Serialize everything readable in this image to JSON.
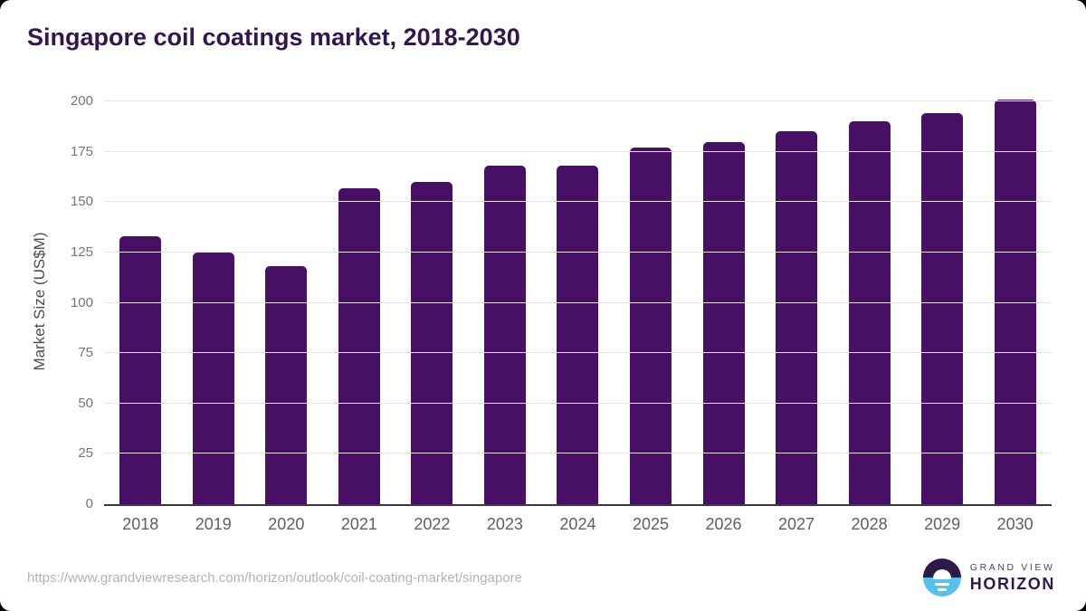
{
  "chart_data": {
    "type": "bar",
    "title": "Singapore coil coatings market, 2018-2030",
    "categories": [
      "2018",
      "2019",
      "2020",
      "2021",
      "2022",
      "2023",
      "2024",
      "2025",
      "2026",
      "2027",
      "2028",
      "2029",
      "2030"
    ],
    "values": [
      133,
      125,
      118,
      157,
      160,
      168,
      168,
      177,
      180,
      185,
      190,
      194,
      201
    ],
    "xlabel": "",
    "ylabel": "Market Size (US$M)",
    "ylim": [
      0,
      202.7
    ],
    "yticks": [
      0,
      25,
      50,
      75,
      100,
      125,
      150,
      175,
      200
    ],
    "grid": true,
    "legend": "none",
    "bar_color": "#481064"
  },
  "footer": {
    "source_url": "https://www.grandviewresearch.com/horizon/outlook/coil-coating-market/singapore",
    "logo_line1": "GRAND VIEW",
    "logo_line2": "HORIZON"
  },
  "colors": {
    "title": "#33164e",
    "bar": "#481064",
    "gridline": "#e5e5e5",
    "axis_line": "#3a3a3a",
    "tick_label": "#757575",
    "x_label": "#5f5f5f",
    "source_text": "#b3b3b3",
    "logo_purple": "#2e1a47",
    "logo_blue": "#56c1ed"
  }
}
